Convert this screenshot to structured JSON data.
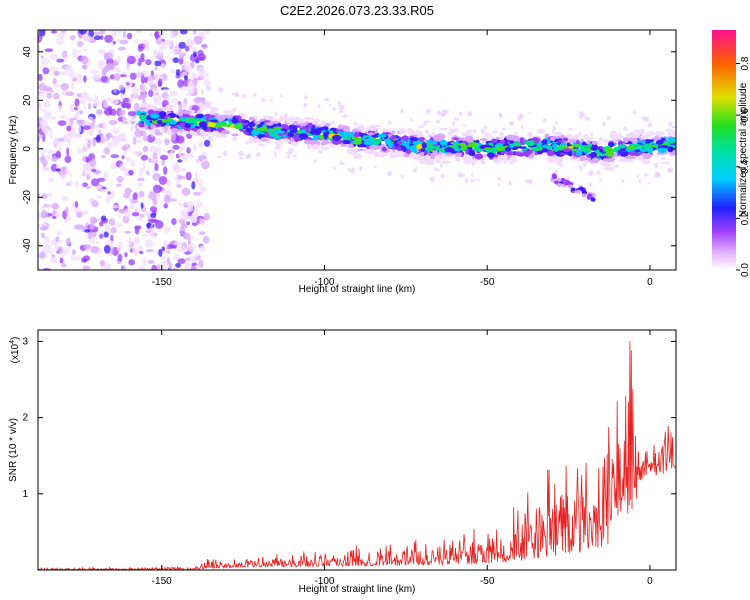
{
  "figure_title": "C2E2.2026.073.23.33.R05",
  "chart_data": [
    {
      "type": "heatmap",
      "xlabel": "Height of straight line (km)",
      "ylabel": "Frequency (Hz)",
      "xlim": [
        -188,
        8
      ],
      "ylim": [
        -50,
        49
      ],
      "xticks": [
        -150,
        -100,
        -50,
        0
      ],
      "yticks": [
        -40,
        -20,
        0,
        20,
        40
      ],
      "colorbar": {
        "label": "Normalized spectral amplitude",
        "range": [
          0,
          0.93
        ],
        "ticks": [
          "0.0",
          "0.2",
          "0.4",
          "0.6",
          "0.8"
        ],
        "tick_values": [
          0.0,
          0.2,
          0.4,
          0.6,
          0.8
        ]
      },
      "ridge": {
        "x": [
          -157,
          -150,
          -140,
          -130,
          -120,
          -110,
          -100,
          -90,
          -80,
          -70,
          -60,
          -50,
          -40,
          -30,
          -20,
          -15,
          -10,
          0,
          8
        ],
        "frequency": [
          13,
          12,
          11,
          10,
          8,
          7,
          6,
          4,
          3,
          1,
          1,
          0,
          1,
          1,
          0,
          -2,
          0,
          1,
          2
        ]
      },
      "noise_region_x": [
        -188,
        -140
      ],
      "secondary_branch": {
        "x": [
          -30,
          -17
        ],
        "frequency": [
          -12,
          -20
        ]
      }
    },
    {
      "type": "line",
      "xlabel": "Height of straight line (km)",
      "ylabel": "SNR (10 * v/v)",
      "ylabel_scale": "(x10",
      "ylabel_scale_exp": "4",
      "ylabel_scale_close": ")",
      "xlim": [
        -188,
        8
      ],
      "ylim": [
        0,
        3.15
      ],
      "xticks": [
        -150,
        -100,
        -50,
        0
      ],
      "yticks": [
        1,
        2,
        3
      ],
      "color": "#e8201f",
      "envelope": {
        "x": [
          -188,
          -140,
          -136,
          -130,
          -120,
          -110,
          -100,
          -90,
          -80,
          -70,
          -60,
          -50,
          -45,
          -40,
          -35,
          -30,
          -25,
          -20,
          -15,
          -12,
          -8,
          -6,
          -3,
          0,
          3,
          5,
          8
        ],
        "upper": [
          0.03,
          0.04,
          0.16,
          0.12,
          0.2,
          0.22,
          0.28,
          0.34,
          0.36,
          0.42,
          0.5,
          0.68,
          0.8,
          0.95,
          1.15,
          1.4,
          1.45,
          1.55,
          1.7,
          2.5,
          2.2,
          3.1,
          1.6,
          1.8,
          1.8,
          2.2,
          1.5
        ],
        "lower": [
          0.0,
          0.0,
          0.02,
          0.03,
          0.04,
          0.04,
          0.05,
          0.05,
          0.06,
          0.06,
          0.07,
          0.08,
          0.1,
          0.12,
          0.15,
          0.18,
          0.22,
          0.25,
          0.3,
          0.35,
          0.9,
          0.6,
          1.15,
          1.3,
          1.2,
          1.3,
          1.35
        ]
      }
    }
  ]
}
